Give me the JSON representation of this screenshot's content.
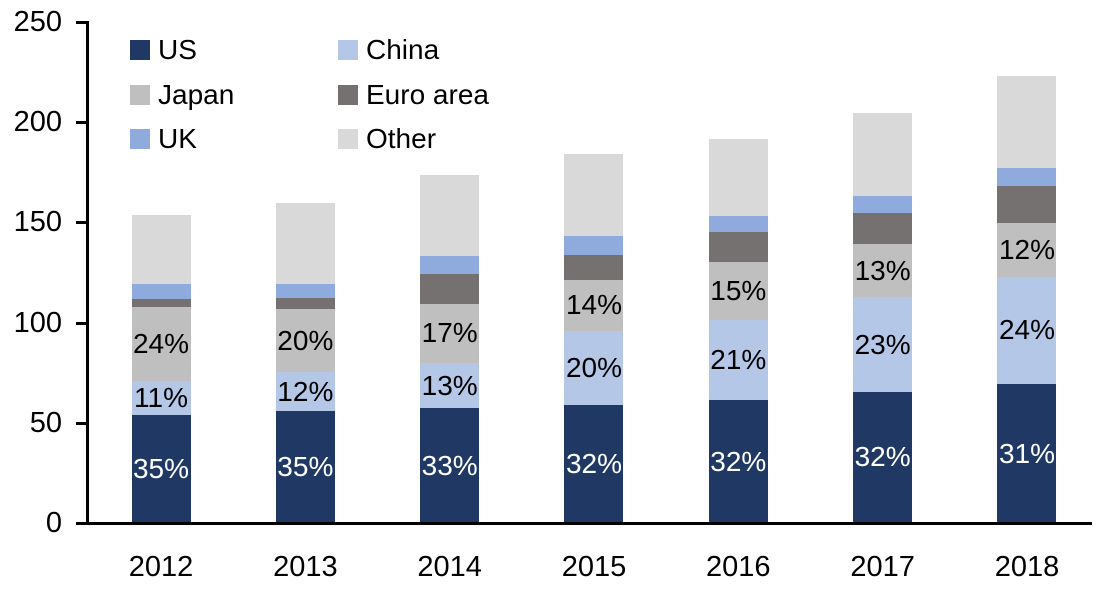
{
  "chart_data": {
    "type": "bar",
    "stacked": true,
    "title": "",
    "xlabel": "",
    "ylabel": "",
    "categories": [
      "2012",
      "2013",
      "2014",
      "2015",
      "2016",
      "2017",
      "2018"
    ],
    "series": [
      {
        "name": "US",
        "color": "#1F3864",
        "values": [
          53.8,
          55.9,
          57.3,
          58.9,
          61.3,
          65.5,
          69.3
        ],
        "labels": [
          "35%",
          "35%",
          "33%",
          "32%",
          "32%",
          "32%",
          "31%"
        ],
        "label_color": "#ffffff"
      },
      {
        "name": "China",
        "color": "#B4C7E7",
        "values": [
          16.9,
          19.2,
          22.6,
          36.8,
          40.2,
          47.1,
          53.7
        ],
        "labels": [
          "11%",
          "12%",
          "13%",
          "20%",
          "21%",
          "23%",
          "24%"
        ],
        "label_color": "#000000"
      },
      {
        "name": "Japan",
        "color": "#BFBFBF",
        "values": [
          36.9,
          31.9,
          29.5,
          25.8,
          28.7,
          26.6,
          26.8
        ],
        "labels": [
          "24%",
          "20%",
          "17%",
          "14%",
          "15%",
          "13%",
          "12%"
        ],
        "label_color": "#000000"
      },
      {
        "name": "Euro area",
        "color": "#767171",
        "values": [
          4.0,
          5.5,
          15.0,
          12.4,
          15.0,
          15.5,
          18.5
        ],
        "labels": null,
        "label_color": "#000000"
      },
      {
        "name": "UK",
        "color": "#8FAADC",
        "values": [
          7.5,
          7.0,
          8.9,
          9.5,
          8.0,
          8.5,
          8.9
        ],
        "labels": null,
        "label_color": "#000000"
      },
      {
        "name": "Other",
        "color": "#D9D9D9",
        "values": [
          34.6,
          40.2,
          40.4,
          40.7,
          38.4,
          41.4,
          46.0
        ],
        "labels": null,
        "label_color": "#000000"
      }
    ],
    "totals": [
      153.7,
      159.7,
      173.7,
      184.1,
      191.6,
      204.6,
      223.2
    ],
    "ylim": [
      0,
      250
    ],
    "yticks": [
      0,
      50,
      100,
      150,
      200,
      250
    ],
    "grid": false,
    "legend_position": "top-left",
    "legend_rows": [
      [
        "US",
        "China"
      ],
      [
        "Japan",
        "Euro area"
      ],
      [
        "UK",
        "Other"
      ]
    ],
    "axis_color": "#000000",
    "text_color": "#000000"
  }
}
